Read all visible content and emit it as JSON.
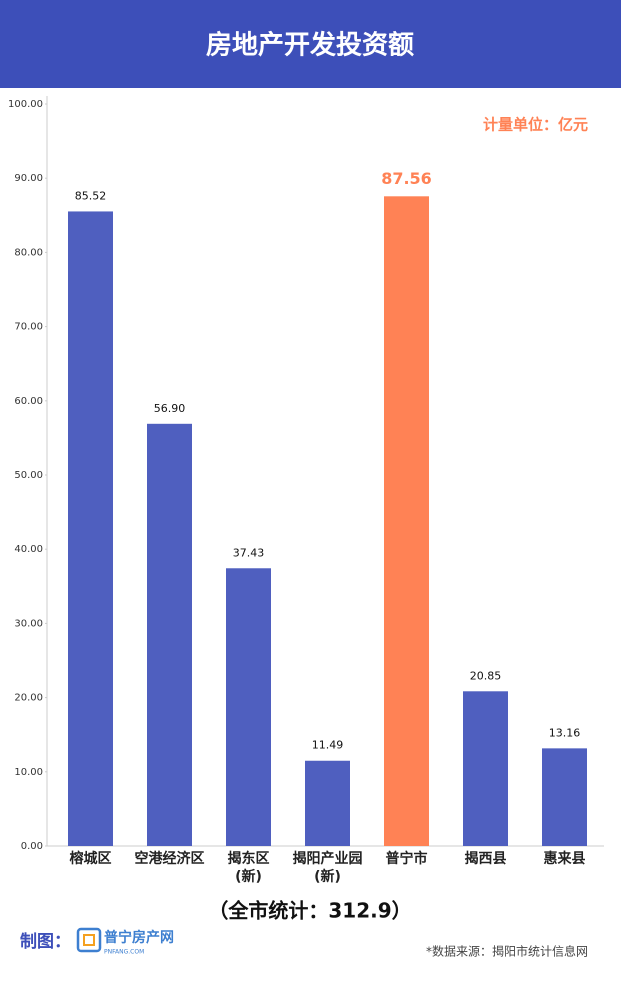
{
  "chart_data": {
    "type": "bar",
    "title": "房地产开发投资额",
    "unit_note": "计量单位：亿元",
    "categories": [
      "榕城区",
      "空港经济区",
      "揭东区\n(新)",
      "揭阳产业园\n(新)",
      "普宁市",
      "揭西县",
      "惠来县"
    ],
    "values": [
      85.52,
      56.9,
      37.43,
      11.49,
      87.56,
      20.85,
      13.16
    ],
    "value_labels": [
      "85.52",
      "56.90",
      "37.43",
      "11.49",
      "87.56",
      "20.85",
      "13.16"
    ],
    "colors": [
      "#4f5fbf",
      "#4f5fbf",
      "#4f5fbf",
      "#4f5fbf",
      "#ff8255",
      "#4f5fbf",
      "#4f5fbf"
    ],
    "value_label_colors": [
      "#111111",
      "#111111",
      "#111111",
      "#111111",
      "#ff8255",
      "#111111",
      "#111111"
    ],
    "ylim": [
      0,
      100
    ],
    "yticks": [
      {
        "value": 0,
        "label": "0.00"
      },
      {
        "value": 10,
        "label": "10.00"
      },
      {
        "value": 20,
        "label": "20.00"
      },
      {
        "value": 30,
        "label": "30.00"
      },
      {
        "value": 40,
        "label": "40.00"
      },
      {
        "value": 50,
        "label": "50.00"
      },
      {
        "value": 60,
        "label": "60.00"
      },
      {
        "value": 70,
        "label": "70.00"
      },
      {
        "value": 80,
        "label": "80.00"
      },
      {
        "value": 90,
        "label": "90.00"
      },
      {
        "value": 100,
        "label": "100.00"
      }
    ],
    "total_note": "（全市统计：312.9）",
    "credit_label": "制图：",
    "logo_name": "普宁房产网",
    "logo_url": "PNFANG.COM",
    "source": "*数据来源：揭阳市统计信息网"
  }
}
